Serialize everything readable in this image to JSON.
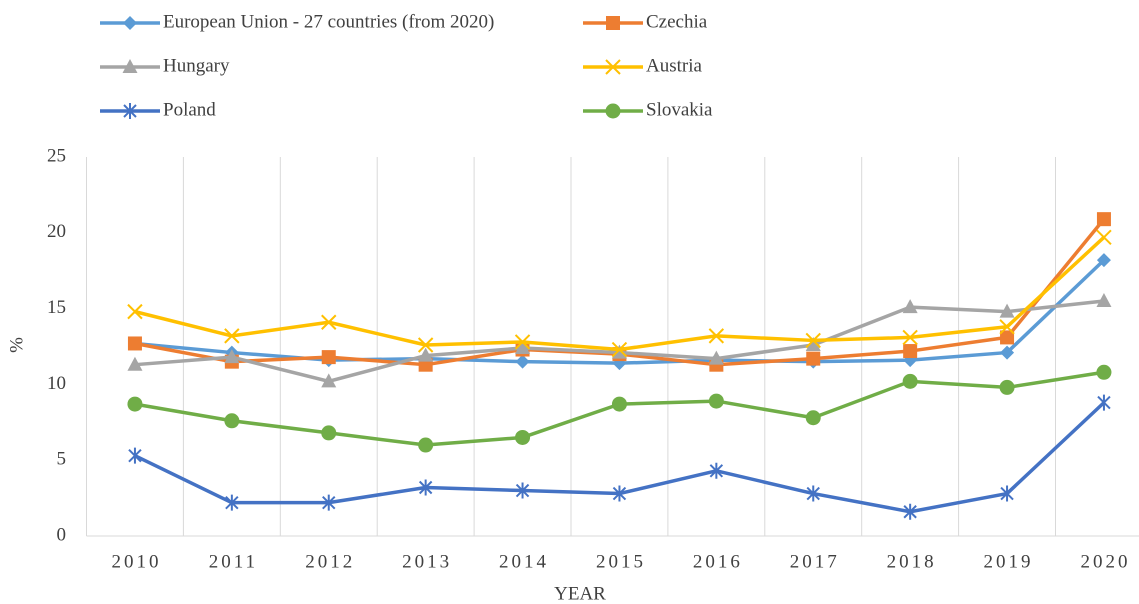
{
  "chart_data": {
    "type": "line",
    "x_label": "YEAR",
    "y_label": "%",
    "categories": [
      "2010",
      "2011",
      "2012",
      "2013",
      "2014",
      "2015",
      "2016",
      "2017",
      "2018",
      "2019",
      "2020"
    ],
    "series": [
      {
        "name": "European Union - 27 countries (from 2020)",
        "color": "#5b9bd5",
        "marker": "diamond",
        "values": [
          12.7,
          12.1,
          11.6,
          11.7,
          11.5,
          11.4,
          11.6,
          11.5,
          11.6,
          12.1,
          18.2
        ]
      },
      {
        "name": "Czechia",
        "color": "#ed7d31",
        "marker": "square",
        "values": [
          12.7,
          11.5,
          11.8,
          11.3,
          12.3,
          12.0,
          11.3,
          11.7,
          12.2,
          13.1,
          20.9
        ]
      },
      {
        "name": "Hungary",
        "color": "#a5a5a5",
        "marker": "triangle",
        "values": [
          11.3,
          11.8,
          10.2,
          11.9,
          12.4,
          12.1,
          11.7,
          12.6,
          15.1,
          14.8,
          15.5
        ]
      },
      {
        "name": "Austria",
        "color": "#ffc000",
        "marker": "x",
        "values": [
          14.8,
          13.2,
          14.1,
          12.6,
          12.8,
          12.3,
          13.2,
          12.9,
          13.1,
          13.8,
          19.7
        ]
      },
      {
        "name": "Poland",
        "color": "#4472c4",
        "marker": "star",
        "values": [
          5.3,
          2.2,
          2.2,
          3.2,
          3.0,
          2.8,
          4.3,
          2.8,
          1.6,
          2.8,
          8.8
        ]
      },
      {
        "name": "Slovakia",
        "color": "#70ad47",
        "marker": "circle",
        "values": [
          8.7,
          7.6,
          6.8,
          6.0,
          6.5,
          8.7,
          8.9,
          7.8,
          10.2,
          9.8,
          10.8
        ]
      }
    ],
    "ylim": [
      0,
      25
    ],
    "yticks": [
      0,
      5,
      10,
      15,
      20,
      25
    ],
    "grid": "x"
  }
}
